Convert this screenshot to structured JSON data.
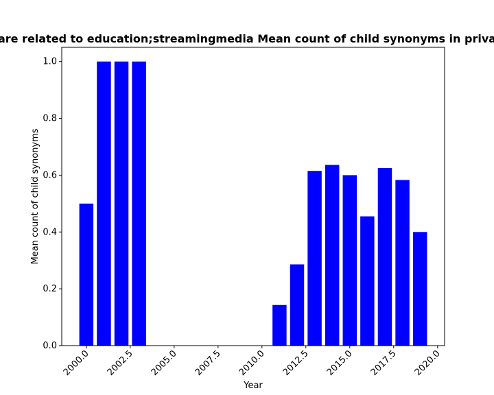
{
  "chart_data": {
    "type": "bar",
    "title": "are related to education;streamingmedia Mean count of child synonyms in priva",
    "xlabel": "Year",
    "ylabel": "Mean count of child synonyms",
    "x": [
      2000,
      2001,
      2002,
      2003,
      2011,
      2012,
      2013,
      2014,
      2015,
      2016,
      2017,
      2018,
      2019
    ],
    "values": [
      0.5,
      1.0,
      1.0,
      1.0,
      0.143,
      0.286,
      0.615,
      0.636,
      0.6,
      0.455,
      0.625,
      0.583,
      0.4
    ],
    "xlim": [
      1998.6,
      2020.4
    ],
    "ylim": [
      0,
      1.05
    ],
    "xticks": [
      "2000.0",
      "2002.5",
      "2005.0",
      "2007.5",
      "2010.0",
      "2012.5",
      "2015.0",
      "2017.5",
      "2020.0"
    ],
    "yticks": [
      "0.0",
      "0.2",
      "0.4",
      "0.6",
      "0.8",
      "1.0"
    ],
    "bar_color": "#0000ff",
    "grid": false,
    "legend": "none"
  }
}
